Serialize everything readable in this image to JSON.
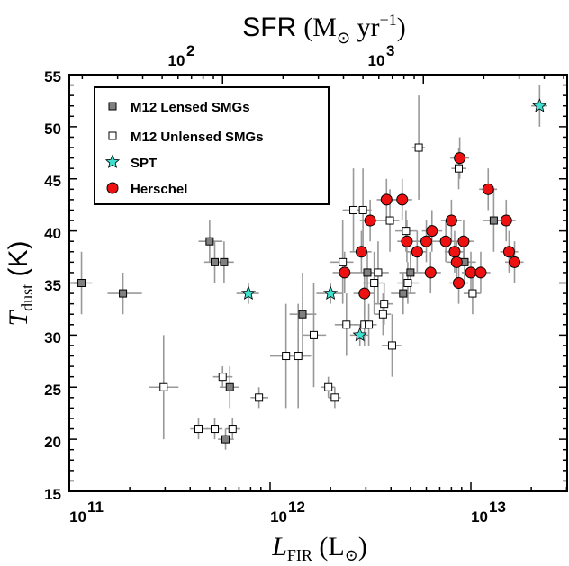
{
  "chart_data": {
    "type": "scatter",
    "x_scale": "log",
    "xlim": [
      100000000000.0,
      30000000000000.0
    ],
    "ylim": [
      15,
      55
    ],
    "x_ticks": [
      {
        "value": 100000000000.0,
        "mantissa": "10",
        "exponent": "11"
      },
      {
        "value": 1000000000000.0,
        "mantissa": "10",
        "exponent": "12"
      },
      {
        "value": 10000000000000.0,
        "mantissa": "10",
        "exponent": "13"
      }
    ],
    "y_ticks": [
      "15",
      "20",
      "25",
      "30",
      "35",
      "40",
      "45",
      "50",
      "55"
    ],
    "top_axis": {
      "title": "SFR (M⊙ yr⁻¹)",
      "title_main": "SFR",
      "title_unit": "(M",
      "title_sun": "⊙",
      "title_yr": " yr",
      "title_exp": "−1",
      "title_close": ")",
      "ticks": [
        {
          "label": "10",
          "exponent": "2",
          "lfir": 580000000000.0
        },
        {
          "label": "10",
          "exponent": "3",
          "lfir": 5800000000000.0
        }
      ]
    },
    "xlabel": "L_FIR (L⊙)",
    "xlabel_var": "L",
    "xlabel_sub": "FIR",
    "xlabel_unit": " (L",
    "xlabel_sun": "⊙",
    "xlabel_close": ")",
    "ylabel": "T_dust (K)",
    "ylabel_var": "T",
    "ylabel_sub": "dust",
    "ylabel_unit": " (K)",
    "legend": {
      "placement": "top-left",
      "entries": [
        {
          "label": "M12 Lensed SMGs",
          "marker": "square",
          "color": "#808080"
        },
        {
          "label": "M12 Unlensed SMGs",
          "marker": "square",
          "color": "#ffffff"
        },
        {
          "label": "SPT",
          "marker": "star",
          "color": "#40e0d0"
        },
        {
          "label": "Herschel",
          "marker": "circle",
          "color": "#ee1111"
        }
      ]
    },
    "series": [
      {
        "name": "M12 Lensed SMGs",
        "points": [
          {
            "x": 115000000000.0,
            "y": 35,
            "xl": 105000000000.0,
            "xh": 130000000000.0,
            "yl": 32,
            "yh": 38
          },
          {
            "x": 185000000000.0,
            "y": 34,
            "xl": 155000000000.0,
            "xh": 230000000000.0,
            "yl": 32,
            "yh": 36
          },
          {
            "x": 500000000000.0,
            "y": 39,
            "xl": 440000000000.0,
            "xh": 580000000000.0,
            "yl": 37,
            "yh": 41
          },
          {
            "x": 530000000000.0,
            "y": 37,
            "xl": 470000000000.0,
            "xh": 600000000000.0,
            "yl": 35,
            "yh": 39
          },
          {
            "x": 590000000000.0,
            "y": 37,
            "xl": 530000000000.0,
            "xh": 660000000000.0,
            "yl": 35,
            "yh": 39
          },
          {
            "x": 630000000000.0,
            "y": 25,
            "xl": 560000000000.0,
            "xh": 700000000000.0,
            "yl": 23,
            "yh": 27
          },
          {
            "x": 600000000000.0,
            "y": 20,
            "xl": 550000000000.0,
            "xh": 660000000000.0,
            "yl": 19,
            "yh": 21
          },
          {
            "x": 1450000000000.0,
            "y": 32,
            "xl": 1250000000000.0,
            "xh": 1700000000000.0,
            "yl": 28,
            "yh": 36
          },
          {
            "x": 3050000000000.0,
            "y": 36,
            "xl": 2700000000000.0,
            "xh": 3500000000000.0,
            "yl": 34,
            "yh": 38
          },
          {
            "x": 4600000000000.0,
            "y": 34,
            "xl": 4000000000000.0,
            "xh": 5300000000000.0,
            "yl": 32,
            "yh": 36
          },
          {
            "x": 5000000000000.0,
            "y": 36,
            "xl": 4400000000000.0,
            "xh": 5700000000000.0,
            "yl": 34,
            "yh": 38
          },
          {
            "x": 9300000000000.0,
            "y": 37,
            "xl": 8200000000000.0,
            "xh": 10600000000000.0,
            "yl": 35,
            "yh": 39
          },
          {
            "x": 13000000000000.0,
            "y": 41,
            "xl": 11500000000000.0,
            "xh": 14500000000000.0,
            "yl": 38,
            "yh": 44
          }
        ]
      },
      {
        "name": "M12 Unlensed SMGs",
        "points": [
          {
            "x": 295000000000.0,
            "y": 25,
            "xl": 250000000000.0,
            "xh": 350000000000.0,
            "yl": 20,
            "yh": 30
          },
          {
            "x": 440000000000.0,
            "y": 21,
            "xl": 400000000000.0,
            "xh": 490000000000.0,
            "yl": 20,
            "yh": 22
          },
          {
            "x": 530000000000.0,
            "y": 21,
            "xl": 480000000000.0,
            "xh": 580000000000.0,
            "yl": 20,
            "yh": 22
          },
          {
            "x": 580000000000.0,
            "y": 26,
            "xl": 520000000000.0,
            "xh": 650000000000.0,
            "yl": 25,
            "yh": 27
          },
          {
            "x": 650000000000.0,
            "y": 21,
            "xl": 600000000000.0,
            "xh": 710000000000.0,
            "yl": 20,
            "yh": 22
          },
          {
            "x": 880000000000.0,
            "y": 24,
            "xl": 800000000000.0,
            "xh": 980000000000.0,
            "yl": 23,
            "yh": 25
          },
          {
            "x": 1200000000000.0,
            "y": 28,
            "xl": 1000000000000.0,
            "xh": 1400000000000.0,
            "yl": 23,
            "yh": 33
          },
          {
            "x": 1380000000000.0,
            "y": 28,
            "xl": 1200000000000.0,
            "xh": 1600000000000.0,
            "yl": 23,
            "yh": 33
          },
          {
            "x": 1650000000000.0,
            "y": 30,
            "xl": 1450000000000.0,
            "xh": 1900000000000.0,
            "yl": 25,
            "yh": 35
          },
          {
            "x": 1950000000000.0,
            "y": 25,
            "xl": 1800000000000.0,
            "xh": 2100000000000.0,
            "yl": 24,
            "yh": 26
          },
          {
            "x": 2100000000000.0,
            "y": 24,
            "xl": 1950000000000.0,
            "xh": 2250000000000.0,
            "yl": 23,
            "yh": 25
          },
          {
            "x": 2300000000000.0,
            "y": 37,
            "xl": 2000000000000.0,
            "xh": 2600000000000.0,
            "yl": 33,
            "yh": 41
          },
          {
            "x": 2400000000000.0,
            "y": 31,
            "xl": 2100000000000.0,
            "xh": 2700000000000.0,
            "yl": 28,
            "yh": 34
          },
          {
            "x": 2600000000000.0,
            "y": 42,
            "xl": 2300000000000.0,
            "xh": 2900000000000.0,
            "yl": 38,
            "yh": 46
          },
          {
            "x": 2900000000000.0,
            "y": 42,
            "xl": 2600000000000.0,
            "xh": 3200000000000.0,
            "yl": 38,
            "yh": 46
          },
          {
            "x": 2950000000000.0,
            "y": 31,
            "xl": 2600000000000.0,
            "xh": 3300000000000.0,
            "yl": 29,
            "yh": 33
          },
          {
            "x": 3100000000000.0,
            "y": 31,
            "xl": 2800000000000.0,
            "xh": 3400000000000.0,
            "yl": 29,
            "yh": 33
          },
          {
            "x": 3300000000000.0,
            "y": 35,
            "xl": 2900000000000.0,
            "xh": 3700000000000.0,
            "yl": 32,
            "yh": 38
          },
          {
            "x": 3450000000000.0,
            "y": 36,
            "xl": 3000000000000.0,
            "xh": 3900000000000.0,
            "yl": 33,
            "yh": 39
          },
          {
            "x": 3700000000000.0,
            "y": 33,
            "xl": 3300000000000.0,
            "xh": 4100000000000.0,
            "yl": 31,
            "yh": 35
          },
          {
            "x": 3650000000000.0,
            "y": 32,
            "xl": 3300000000000.0,
            "xh": 4000000000000.0,
            "yl": 30,
            "yh": 34
          },
          {
            "x": 3950000000000.0,
            "y": 41,
            "xl": 3500000000000.0,
            "xh": 4400000000000.0,
            "yl": 38,
            "yh": 44
          },
          {
            "x": 4050000000000.0,
            "y": 29,
            "xl": 3600000000000.0,
            "xh": 4500000000000.0,
            "yl": 26,
            "yh": 32
          },
          {
            "x": 4750000000000.0,
            "y": 40,
            "xl": 4200000000000.0,
            "xh": 5400000000000.0,
            "yl": 38,
            "yh": 42
          },
          {
            "x": 4850000000000.0,
            "y": 35,
            "xl": 4300000000000.0,
            "xh": 5500000000000.0,
            "yl": 33,
            "yh": 37
          },
          {
            "x": 5500000000000.0,
            "y": 48,
            "xl": 5100000000000.0,
            "xh": 5900000000000.0,
            "yl": 43,
            "yh": 53
          },
          {
            "x": 8700000000000.0,
            "y": 46,
            "xl": 8000000000000.0,
            "xh": 9500000000000.0,
            "yl": 44,
            "yh": 48
          },
          {
            "x": 10200000000000.0,
            "y": 34,
            "xl": 9200000000000.0,
            "xh": 11200000000000.0,
            "yl": 32,
            "yh": 36
          }
        ]
      },
      {
        "name": "SPT",
        "points": [
          {
            "x": 780000000000.0,
            "y": 34,
            "xl": 680000000000.0,
            "xh": 880000000000.0,
            "yl": 33,
            "yh": 35
          },
          {
            "x": 2000000000000.0,
            "y": 34,
            "xl": 1700000000000.0,
            "xh": 2300000000000.0,
            "yl": 33,
            "yh": 35
          },
          {
            "x": 2800000000000.0,
            "y": 30,
            "xl": 2500000000000.0,
            "xh": 3100000000000.0,
            "yl": 29,
            "yh": 31
          },
          {
            "x": 22000000000000.0,
            "y": 52,
            "xl": 20000000000000.0,
            "xh": 24000000000000.0,
            "yl": 50,
            "yh": 54
          }
        ]
      },
      {
        "name": "Herschel",
        "points": [
          {
            "x": 2350000000000.0,
            "y": 36,
            "xl": 2050000000000.0,
            "xh": 2700000000000.0,
            "yl": 34,
            "yh": 38
          },
          {
            "x": 2850000000000.0,
            "y": 38,
            "xl": 2500000000000.0,
            "xh": 3200000000000.0,
            "yl": 36,
            "yh": 40
          },
          {
            "x": 2950000000000.0,
            "y": 34,
            "xl": 2600000000000.0,
            "xh": 3300000000000.0,
            "yl": 32,
            "yh": 36
          },
          {
            "x": 3150000000000.0,
            "y": 41,
            "xl": 2800000000000.0,
            "xh": 3500000000000.0,
            "yl": 39,
            "yh": 43
          },
          {
            "x": 3800000000000.0,
            "y": 43,
            "xl": 3400000000000.0,
            "xh": 4300000000000.0,
            "yl": 41,
            "yh": 45
          },
          {
            "x": 4550000000000.0,
            "y": 43,
            "xl": 4000000000000.0,
            "xh": 5100000000000.0,
            "yl": 41,
            "yh": 45
          },
          {
            "x": 4800000000000.0,
            "y": 39,
            "xl": 4300000000000.0,
            "xh": 5400000000000.0,
            "yl": 37,
            "yh": 41
          },
          {
            "x": 5400000000000.0,
            "y": 38,
            "xl": 4800000000000.0,
            "xh": 6000000000000.0,
            "yl": 36,
            "yh": 40
          },
          {
            "x": 6000000000000.0,
            "y": 39,
            "xl": 5300000000000.0,
            "xh": 6700000000000.0,
            "yl": 37,
            "yh": 41
          },
          {
            "x": 6400000000000.0,
            "y": 40,
            "xl": 5700000000000.0,
            "xh": 7200000000000.0,
            "yl": 38,
            "yh": 42
          },
          {
            "x": 6300000000000.0,
            "y": 36,
            "xl": 5600000000000.0,
            "xh": 7100000000000.0,
            "yl": 34,
            "yh": 38
          },
          {
            "x": 7500000000000.0,
            "y": 39,
            "xl": 6700000000000.0,
            "xh": 8400000000000.0,
            "yl": 37,
            "yh": 41
          },
          {
            "x": 8000000000000.0,
            "y": 41,
            "xl": 7100000000000.0,
            "xh": 9000000000000.0,
            "yl": 39,
            "yh": 43
          },
          {
            "x": 8300000000000.0,
            "y": 38,
            "xl": 7400000000000.0,
            "xh": 9300000000000.0,
            "yl": 36,
            "yh": 40
          },
          {
            "x": 8500000000000.0,
            "y": 37,
            "xl": 7600000000000.0,
            "xh": 9500000000000.0,
            "yl": 35,
            "yh": 39
          },
          {
            "x": 8700000000000.0,
            "y": 35,
            "xl": 7800000000000.0,
            "xh": 9700000000000.0,
            "yl": 33,
            "yh": 37
          },
          {
            "x": 8800000000000.0,
            "y": 47,
            "xl": 7900000000000.0,
            "xh": 9800000000000.0,
            "yl": 45,
            "yh": 49
          },
          {
            "x": 9200000000000.0,
            "y": 39,
            "xl": 8200000000000.0,
            "xh": 10300000000000.0,
            "yl": 37,
            "yh": 41
          },
          {
            "x": 10000000000000.0,
            "y": 36,
            "xl": 9000000000000.0,
            "xh": 11200000000000.0,
            "yl": 34,
            "yh": 38
          },
          {
            "x": 11200000000000.0,
            "y": 36,
            "xl": 10000000000000.0,
            "xh": 12500000000000.0,
            "yl": 34,
            "yh": 38
          },
          {
            "x": 12200000000000.0,
            "y": 44,
            "xl": 11000000000000.0,
            "xh": 13500000000000.0,
            "yl": 42,
            "yh": 46
          },
          {
            "x": 15000000000000.0,
            "y": 41,
            "xl": 13500000000000.0,
            "xh": 16700000000000.0,
            "yl": 39,
            "yh": 43
          },
          {
            "x": 15500000000000.0,
            "y": 38,
            "xl": 14000000000000.0,
            "xh": 17200000000000.0,
            "yl": 36,
            "yh": 40
          },
          {
            "x": 16500000000000.0,
            "y": 37,
            "xl": 14800000000000.0,
            "xh": 18300000000000.0,
            "yl": 35,
            "yh": 39
          }
        ]
      }
    ],
    "colors": {
      "errorbar": "#999999",
      "lensed": "#808080",
      "unlensed": "#ffffff",
      "spt": "#40e0d0",
      "herschel": "#ee1111"
    }
  }
}
